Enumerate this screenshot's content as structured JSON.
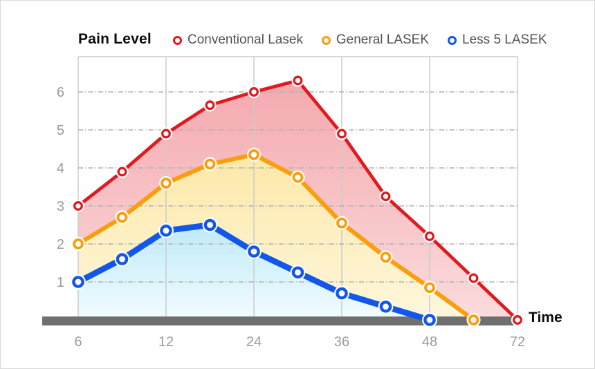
{
  "header": {
    "title": "Pain Level",
    "legend": [
      {
        "label": "Conventional Lasek",
        "color": "#e01a20"
      },
      {
        "label": "General LASEK",
        "color": "#fa9e0d"
      },
      {
        "label": "Less 5 LASEK",
        "color": "#1257ea"
      }
    ]
  },
  "axes": {
    "x_label": "Time",
    "x_ticks": [
      "6",
      "12",
      "24",
      "36",
      "48",
      "72"
    ],
    "y_ticks": [
      "1",
      "2",
      "3",
      "4",
      "5",
      "6"
    ],
    "tick_color": "#9b9b9b",
    "grid_line_color": "#cccccc",
    "dash_line_color": "#b0b0b0",
    "axis_bar_color": "#6f6f6f"
  },
  "chart_data": {
    "type": "line",
    "title": "Pain Level",
    "xlabel": "Time",
    "ylabel": "Pain Level",
    "x": [
      6,
      9,
      12,
      18,
      24,
      30,
      36,
      42,
      48,
      60,
      72
    ],
    "x_tick_labels": [
      6,
      12,
      24,
      36,
      48,
      72
    ],
    "ylim": [
      0,
      7
    ],
    "grid": true,
    "legend_position": "top",
    "series": [
      {
        "name": "Conventional Lasek",
        "color": "#e01a20",
        "fill_top": "#f4a9ae",
        "fill_bottom": "#fbdcdd",
        "line_width": 4.8,
        "marker_r": 5.3,
        "ring_w": 3.3,
        "values": [
          3.0,
          3.9,
          4.9,
          5.65,
          6.0,
          6.3,
          4.9,
          3.25,
          2.2,
          1.1,
          0
        ]
      },
      {
        "name": "General LASEK",
        "color": "#fa9e0d",
        "fill_top": "#fce8a8",
        "fill_bottom": "#fef7dc",
        "line_width": 6.2,
        "marker_r": 6.0,
        "ring_w": 3.8,
        "values": [
          2.0,
          2.7,
          3.6,
          4.1,
          4.35,
          3.75,
          2.55,
          1.65,
          0.85,
          0,
          null
        ]
      },
      {
        "name": "Less 5 LASEK",
        "color": "#1257ea",
        "fill_top": "#bfeaf8",
        "fill_bottom": "#f2fcff",
        "line_width": 8.6,
        "marker_r": 6.6,
        "ring_w": 4.4,
        "values": [
          1.0,
          1.6,
          2.35,
          2.5,
          1.8,
          1.25,
          0.7,
          0.35,
          0,
          null,
          null
        ]
      }
    ]
  }
}
